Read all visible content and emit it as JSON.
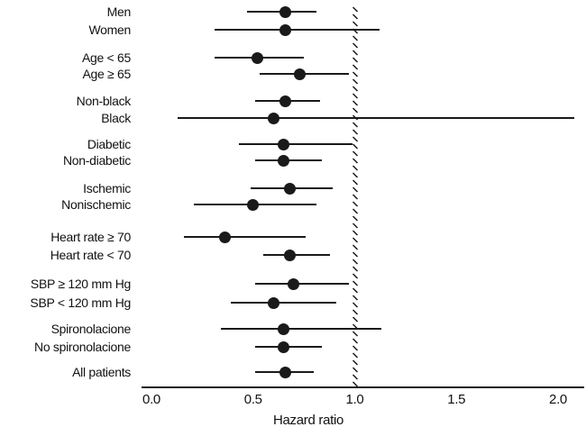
{
  "colors": {
    "marker": "#1a1a1a",
    "ci_line": "#1a1a1a",
    "reference_line": "#1a1a1a",
    "background": "#ffffff"
  },
  "chart_data": {
    "type": "scatter",
    "subtype": "forest-plot",
    "title": "",
    "xlabel": "Hazard ratio",
    "ylabel": "",
    "xlim": [
      0.0,
      2.1
    ],
    "x_ticks": [
      0.0,
      0.5,
      1.0,
      1.5,
      2.0
    ],
    "x_tick_labels": [
      "0.0",
      "0.5",
      "1.0",
      "1.5",
      "2.0"
    ],
    "reference_line_x": 1.0,
    "reference_line_style": "hatched-dashed",
    "grid": false,
    "legend": false,
    "groups": [
      [
        "Men",
        "Women"
      ],
      [
        "Age < 65",
        "Age ≥ 65"
      ],
      [
        "Non-black",
        "Black"
      ],
      [
        "Diabetic",
        "Non-diabetic"
      ],
      [
        "Ischemic",
        "Nonischemic"
      ],
      [
        "Heart rate ≥ 70",
        "Heart rate < 70"
      ],
      [
        "SBP ≥ 120 mm Hg",
        "SBP < 120 mm Hg"
      ],
      [
        "Spironolacione",
        "No spironolacione"
      ],
      [
        "All patients"
      ]
    ],
    "rows": [
      {
        "label": "Men",
        "hazard_ratio": 0.66,
        "ci_low": 0.47,
        "ci_high": 0.81
      },
      {
        "label": "Women",
        "hazard_ratio": 0.66,
        "ci_low": 0.31,
        "ci_high": 1.12
      },
      {
        "label": "Age < 65",
        "hazard_ratio": 0.52,
        "ci_low": 0.31,
        "ci_high": 0.75
      },
      {
        "label": "Age ≥ 65",
        "hazard_ratio": 0.73,
        "ci_low": 0.53,
        "ci_high": 0.97
      },
      {
        "label": "Non-black",
        "hazard_ratio": 0.66,
        "ci_low": 0.51,
        "ci_high": 0.83
      },
      {
        "label": "Black",
        "hazard_ratio": 0.6,
        "ci_low": 0.13,
        "ci_high": 2.08
      },
      {
        "label": "Diabetic",
        "hazard_ratio": 0.65,
        "ci_low": 0.43,
        "ci_high": 0.99
      },
      {
        "label": "Non-diabetic",
        "hazard_ratio": 0.65,
        "ci_low": 0.51,
        "ci_high": 0.84
      },
      {
        "label": "Ischemic",
        "hazard_ratio": 0.68,
        "ci_low": 0.49,
        "ci_high": 0.89
      },
      {
        "label": "Nonischemic",
        "hazard_ratio": 0.5,
        "ci_low": 0.21,
        "ci_high": 0.81
      },
      {
        "label": "Heart rate ≥ 70",
        "hazard_ratio": 0.36,
        "ci_low": 0.16,
        "ci_high": 0.76
      },
      {
        "label": "Heart rate < 70",
        "hazard_ratio": 0.68,
        "ci_low": 0.55,
        "ci_high": 0.88
      },
      {
        "label": "SBP ≥ 120 mm Hg",
        "hazard_ratio": 0.7,
        "ci_low": 0.51,
        "ci_high": 0.97
      },
      {
        "label": "SBP < 120 mm Hg",
        "hazard_ratio": 0.6,
        "ci_low": 0.39,
        "ci_high": 0.91
      },
      {
        "label": "Spironolacione",
        "hazard_ratio": 0.65,
        "ci_low": 0.34,
        "ci_high": 1.13
      },
      {
        "label": "No spironolacione",
        "hazard_ratio": 0.65,
        "ci_low": 0.51,
        "ci_high": 0.84
      },
      {
        "label": "All patients",
        "hazard_ratio": 0.66,
        "ci_low": 0.51,
        "ci_high": 0.8
      }
    ]
  }
}
